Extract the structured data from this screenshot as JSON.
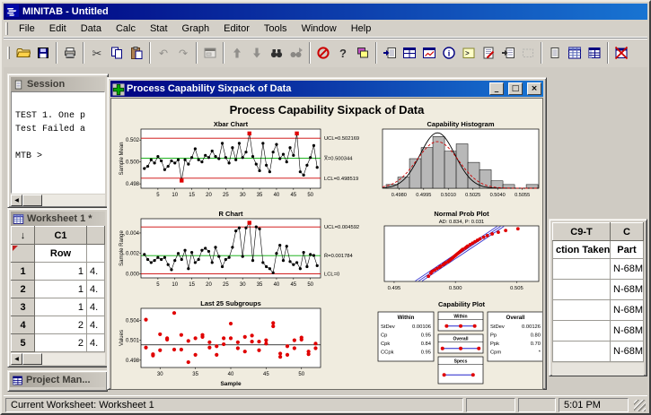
{
  "window": {
    "title": "MINITAB - Untitled"
  },
  "menu": {
    "items": [
      "File",
      "Edit",
      "Data",
      "Calc",
      "Stat",
      "Graph",
      "Editor",
      "Tools",
      "Window",
      "Help"
    ]
  },
  "toolbar": {
    "buttons": [
      {
        "name": "open-button",
        "icon": "folder"
      },
      {
        "name": "save-button",
        "icon": "floppy"
      },
      {
        "name": "sep"
      },
      {
        "name": "print-button",
        "icon": "printer"
      },
      {
        "name": "sep"
      },
      {
        "name": "cut-button",
        "icon": "scissors"
      },
      {
        "name": "copy-button",
        "icon": "copy"
      },
      {
        "name": "paste-button",
        "icon": "paste"
      },
      {
        "name": "sep"
      },
      {
        "name": "undo-button",
        "icon": "undo",
        "disabled": true
      },
      {
        "name": "redo-button",
        "icon": "redo",
        "disabled": true
      },
      {
        "name": "sep"
      },
      {
        "name": "edit-last-dialog-button",
        "icon": "dialog",
        "disabled": true
      },
      {
        "name": "sep"
      },
      {
        "name": "previous-command-button",
        "icon": "arrow-up",
        "disabled": true
      },
      {
        "name": "next-command-button",
        "icon": "arrow-down",
        "disabled": true
      },
      {
        "name": "find-button",
        "icon": "find"
      },
      {
        "name": "find-next-button",
        "icon": "find-next",
        "disabled": true
      },
      {
        "name": "sep"
      },
      {
        "name": "cancel-button",
        "icon": "cancel"
      },
      {
        "name": "help-button",
        "icon": "help"
      },
      {
        "name": "manage-windows-button",
        "icon": "windows"
      },
      {
        "name": "sep"
      },
      {
        "name": "show-session-subwindow-button",
        "icon": "scroll-arrow"
      },
      {
        "name": "tile-windows-button",
        "icon": "win-grid"
      },
      {
        "name": "show-graph-windows-button",
        "icon": "win-chart"
      },
      {
        "name": "show-info-window-button",
        "icon": "info"
      },
      {
        "name": "show-session-window-button",
        "icon": "console"
      },
      {
        "name": "show-history-window-button",
        "icon": "doc-pencil"
      },
      {
        "name": "edit-last-command-button",
        "icon": "doc-arrow"
      },
      {
        "name": "select-graph-button",
        "icon": "dashed-box",
        "disabled": true
      },
      {
        "name": "sep"
      },
      {
        "name": "session-window-button",
        "icon": "scroll"
      },
      {
        "name": "current-worksheet-button",
        "icon": "grid-blue"
      },
      {
        "name": "show-worksheets-button",
        "icon": "table"
      },
      {
        "name": "sep"
      },
      {
        "name": "close-all-graphs-button",
        "icon": "win-x"
      }
    ]
  },
  "session": {
    "title": "Session",
    "lines": [
      "",
      "TEST 1. One p",
      "Test Failed a",
      "",
      "MTB > "
    ]
  },
  "worksheet": {
    "title": "Worksheet 1 *",
    "left": {
      "corner_arrow": "↓",
      "c1_header": "C1",
      "c1_name": "Row",
      "rows": [
        {
          "num": "1",
          "c1": "1",
          "c2": "4."
        },
        {
          "num": "2",
          "c1": "1",
          "c2": "4."
        },
        {
          "num": "3",
          "c1": "1",
          "c2": "4."
        },
        {
          "num": "4",
          "c1": "2",
          "c2": "4."
        },
        {
          "num": "5",
          "c1": "2",
          "c2": "4."
        }
      ]
    },
    "right": {
      "col1_header": "C9-T",
      "col2_header": "C",
      "col1_name": "ction Taken",
      "col2_name": "Part",
      "rows": [
        {
          "col1": "",
          "col2": "N-68M"
        },
        {
          "col1": "",
          "col2": "N-68M"
        },
        {
          "col1": "",
          "col2": "N-68M"
        },
        {
          "col1": "",
          "col2": "N-68M"
        },
        {
          "col1": "",
          "col2": "N-68M"
        }
      ]
    }
  },
  "project_manager": {
    "title": "Project Man..."
  },
  "sixpack": {
    "title": "Process Capability Sixpack of Data",
    "heading": "Process Capability Sixpack of Data",
    "buttons": {
      "minimize": "_",
      "maximize": "□",
      "close": "×"
    }
  },
  "statusbar": {
    "text": "Current Worksheet: Worksheet 1",
    "time": "5:01 PM"
  },
  "colors": {
    "titlebar_a": "#000080",
    "titlebar_b": "#1874d2",
    "chrome": "#d4d0c8",
    "mdi_bg": "#cfcbc3",
    "graph_bg": "#f0ecdf",
    "inactive_a": "#a8a39a",
    "inactive_b": "#cdc9c1",
    "inactive_text": "#3e3c37",
    "limit_line": "#cc0000",
    "center_line": "#00a800",
    "point": "#000000",
    "out_point": "#e00000",
    "scatter_point": "#e00000",
    "fit_line": "#2222cc",
    "bar_fill": "#b8b8b8",
    "curve_within": "#000000",
    "curve_overall": "#cc0000"
  },
  "chart_data": [
    {
      "type": "control",
      "title": "Xbar Chart",
      "ylabel": "Sample Mean",
      "ylim": [
        0.4976,
        0.503
      ],
      "yticks": [
        0.498,
        0.5,
        0.502
      ],
      "ytick_labels": [
        "0.498",
        "0.500",
        "0.502"
      ],
      "xlim": [
        0,
        53
      ],
      "xticks": [
        5,
        10,
        15,
        20,
        25,
        30,
        35,
        40,
        45,
        50
      ],
      "ucl": 0.502169,
      "center": 0.500344,
      "lcl": 0.498519,
      "labels": {
        "ucl": "UCL=0.502169",
        "center": "X̿=0.500344",
        "lcl": "LCL=0.498519"
      },
      "out_points": [
        12,
        32,
        46
      ],
      "values": [
        0.4994,
        0.4996,
        0.5002,
        0.4999,
        0.5005,
        0.5001,
        0.4993,
        0.4996,
        0.5001,
        0.4999,
        0.5002,
        0.4983,
        0.5002,
        0.4998,
        0.5004,
        0.5012,
        0.5002,
        0.5,
        0.5006,
        0.5004,
        0.501,
        0.5005,
        0.5003,
        0.5017,
        0.5004,
        0.4999,
        0.5013,
        0.5002,
        0.5017,
        0.5004,
        0.5009,
        0.5026,
        0.5005,
        0.4998,
        0.4992,
        0.5017,
        0.4997,
        0.4991,
        0.5009,
        0.5016,
        0.5003,
        0.5007,
        0.5,
        0.5013,
        0.5006,
        0.5026,
        0.4991,
        0.4988,
        0.4997,
        0.5004,
        0.5015,
        0.4995
      ]
    },
    {
      "type": "control",
      "title": "R Chart",
      "ylabel": "Sample Range",
      "ylim": [
        -0.0004,
        0.0054
      ],
      "yticks": [
        0.0,
        0.002,
        0.004
      ],
      "ytick_labels": [
        "0.000",
        "0.002",
        "0.004"
      ],
      "xlim": [
        0,
        53
      ],
      "xticks": [
        5,
        10,
        15,
        20,
        25,
        30,
        35,
        40,
        45,
        50
      ],
      "ucl": 0.004592,
      "center": 0.001784,
      "lcl": 0,
      "labels": {
        "ucl": "UCL=0.004592",
        "center": "R̄=0.001784",
        "lcl": "LCL=0"
      },
      "out_points": [
        32
      ],
      "values": [
        0.0019,
        0.0014,
        0.0011,
        0.0013,
        0.0016,
        0.0014,
        0.0016,
        0.0009,
        0.0004,
        0.0013,
        0.002,
        0.0014,
        0.0023,
        0.0005,
        0.0021,
        0.0011,
        0.0014,
        0.0023,
        0.0025,
        0.0022,
        0.0011,
        0.0026,
        0.0017,
        0.0007,
        0.0014,
        0.0016,
        0.0026,
        0.0042,
        0.0045,
        0.0017,
        0.0045,
        0.005,
        0.0013,
        0.0046,
        0.0044,
        0.0011,
        0.0007,
        0.0005,
        0.0001,
        0.002,
        0.0028,
        0.0013,
        0.0027,
        0.0012,
        0.0009,
        0.0011,
        0.0005,
        0.0021,
        0.0007,
        0.0019,
        0.0018,
        0.0008
      ]
    },
    {
      "type": "scatter",
      "title": "Last 25 Subgroups",
      "ylabel": "Values",
      "xlabel": "Sample",
      "ylim": [
        0.4969,
        0.5058
      ],
      "yticks": [
        0.498,
        0.501,
        0.504
      ],
      "ytick_labels": [
        "0.498",
        "0.501",
        "0.504"
      ],
      "xlim": [
        27.3,
        52.7
      ],
      "xticks": [
        30,
        35,
        40,
        45,
        50
      ],
      "center": 0.5003,
      "points": [
        [
          28,
          0.5041
        ],
        [
          28,
          0.4999
        ],
        [
          29,
          0.4989
        ],
        [
          29,
          0.4987
        ],
        [
          30,
          0.5019
        ],
        [
          30,
          0.4995
        ],
        [
          31,
          0.5013
        ],
        [
          31,
          0.5011
        ],
        [
          32,
          0.5051
        ],
        [
          32,
          0.4996
        ],
        [
          33,
          0.5018
        ],
        [
          33,
          0.4996
        ],
        [
          34,
          0.5009
        ],
        [
          34,
          0.4977
        ],
        [
          35,
          0.5013
        ],
        [
          35,
          0.4988
        ],
        [
          36,
          0.5018
        ],
        [
          36,
          0.5015
        ],
        [
          37,
          0.5007
        ],
        [
          37,
          0.4999
        ],
        [
          38,
          0.5001
        ],
        [
          38,
          0.4988
        ],
        [
          39,
          0.5013
        ],
        [
          39,
          0.5004
        ],
        [
          40,
          0.5035
        ],
        [
          40,
          0.5013
        ],
        [
          41,
          0.5007
        ],
        [
          41,
          0.4998
        ],
        [
          42,
          0.5015
        ],
        [
          42,
          0.4993
        ],
        [
          43,
          0.5017
        ],
        [
          43,
          0.5008
        ],
        [
          44,
          0.5008
        ],
        [
          44,
          0.4995
        ],
        [
          45,
          0.501
        ],
        [
          45,
          0.5005
        ],
        [
          46,
          0.5036
        ],
        [
          46,
          0.5031
        ],
        [
          47,
          0.499
        ],
        [
          47,
          0.4985
        ],
        [
          48,
          0.5001
        ],
        [
          48,
          0.4988
        ],
        [
          49,
          0.501
        ],
        [
          49,
          0.4998
        ],
        [
          50,
          0.5014
        ],
        [
          50,
          0.5011
        ],
        [
          51,
          0.4993
        ],
        [
          51,
          0.4989
        ],
        [
          52,
          0.5005
        ],
        [
          52,
          0.4998
        ]
      ]
    },
    {
      "type": "histogram",
      "title": "Capability Histogram",
      "bin_start": 0.49722,
      "bin_width": 0.00071,
      "counts": [
        1,
        3,
        8,
        11,
        14,
        10,
        12,
        7,
        5,
        2,
        1,
        0,
        1
      ],
      "xlim": [
        0.497,
        0.5065
      ],
      "ylim": [
        0,
        16
      ],
      "xticks": [
        0.498,
        0.4995,
        0.501,
        0.5025,
        0.504,
        0.5055
      ],
      "xtick_labels": [
        "0.4980",
        "0.4995",
        "0.5010",
        "0.5025",
        "0.5040",
        "0.5055"
      ],
      "mean": 0.500344,
      "curves": [
        {
          "sd": 0.00106,
          "peak": 15,
          "color": "#000000",
          "dash": ""
        },
        {
          "sd": 0.00126,
          "peak": 12.6,
          "color": "#cc0000",
          "dash": "3,2"
        }
      ]
    },
    {
      "type": "probplot",
      "title": "Normal Prob Plot",
      "subtitle": "AD: 0.834, P: 0.031",
      "xlim": [
        0.4942,
        0.5068
      ],
      "zlim": [
        -2.7,
        2.7
      ],
      "xticks": [
        0.495,
        0.5,
        0.505
      ],
      "xtick_labels": [
        "0.495",
        "0.500",
        "0.505"
      ],
      "fit": {
        "mean": 0.500344,
        "sd": 0.00126,
        "band": 0.22
      },
      "points": [
        [
          0.4978,
          -2.2
        ],
        [
          0.498,
          -1.9
        ],
        [
          0.4981,
          -1.72
        ],
        [
          0.4983,
          -1.6
        ],
        [
          0.4985,
          -1.45
        ],
        [
          0.4987,
          -1.32
        ],
        [
          0.4988,
          -1.22
        ],
        [
          0.499,
          -1.08
        ],
        [
          0.4991,
          -0.98
        ],
        [
          0.4992,
          -0.88
        ],
        [
          0.4994,
          -0.78
        ],
        [
          0.4995,
          -0.68
        ],
        [
          0.4996,
          -0.58
        ],
        [
          0.4997,
          -0.48
        ],
        [
          0.4998,
          -0.38
        ],
        [
          0.4999,
          -0.28
        ],
        [
          0.5,
          -0.18
        ],
        [
          0.5001,
          -0.08
        ],
        [
          0.5002,
          0.02
        ],
        [
          0.5003,
          0.12
        ],
        [
          0.5004,
          0.22
        ],
        [
          0.5005,
          0.32
        ],
        [
          0.5006,
          0.42
        ],
        [
          0.5008,
          0.54
        ],
        [
          0.5009,
          0.64
        ],
        [
          0.501,
          0.74
        ],
        [
          0.5012,
          0.88
        ],
        [
          0.5014,
          1.02
        ],
        [
          0.5016,
          1.16
        ],
        [
          0.5018,
          1.3
        ],
        [
          0.502,
          1.44
        ],
        [
          0.5023,
          1.6
        ],
        [
          0.5026,
          1.75
        ],
        [
          0.503,
          1.92
        ],
        [
          0.5035,
          2.08
        ],
        [
          0.5041,
          2.25
        ],
        [
          0.5051,
          2.42
        ]
      ]
    },
    {
      "type": "capability",
      "title": "Capability Plot",
      "within": {
        "title": "Within",
        "rows": [
          [
            "StDev",
            "0.00106"
          ],
          [
            "Cp",
            "0.95"
          ],
          [
            "Cpk",
            "0.84"
          ],
          [
            "CCpk",
            "0.95"
          ]
        ]
      },
      "overall": {
        "title": "Overall",
        "rows": [
          [
            "StDev",
            "0.00126"
          ],
          [
            "Pp",
            "0.80"
          ],
          [
            "Ppk",
            "0.70"
          ],
          [
            "Cpm",
            "*"
          ]
        ]
      },
      "bars": [
        {
          "label": "Within",
          "x1": 0.16,
          "x2": 0.84,
          "mid": true
        },
        {
          "label": "Overall",
          "x1": 0.06,
          "x2": 0.94,
          "mid": true
        },
        {
          "label": "Specs",
          "x1": 0.1,
          "x2": 0.8,
          "mid": false
        }
      ]
    }
  ]
}
